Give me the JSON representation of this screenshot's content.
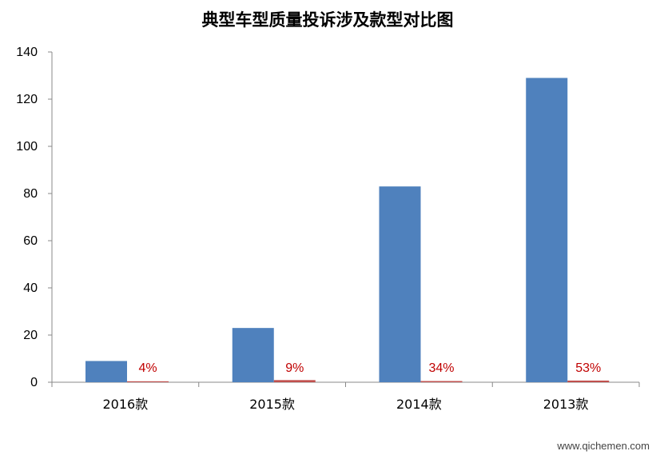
{
  "chart_data": {
    "type": "bar",
    "title": "典型车型质量投诉涉及款型对比图",
    "categories": [
      "2016款",
      "2015款",
      "2014款",
      "2013款"
    ],
    "series": [
      {
        "values": [
          9,
          23,
          83,
          129
        ],
        "color": "#4f81bd"
      },
      {
        "values": [
          0.4,
          0.9,
          0.5,
          0.7
        ],
        "color": "#c0504d"
      }
    ],
    "data_labels": [
      "4%",
      "9%",
      "34%",
      "53%"
    ],
    "yticks": [
      0,
      20,
      40,
      60,
      80,
      100,
      120,
      140
    ],
    "ylim": [
      0,
      140
    ],
    "grid": false,
    "label_color": "#c00000"
  },
  "watermark": "www.qichemen.com"
}
